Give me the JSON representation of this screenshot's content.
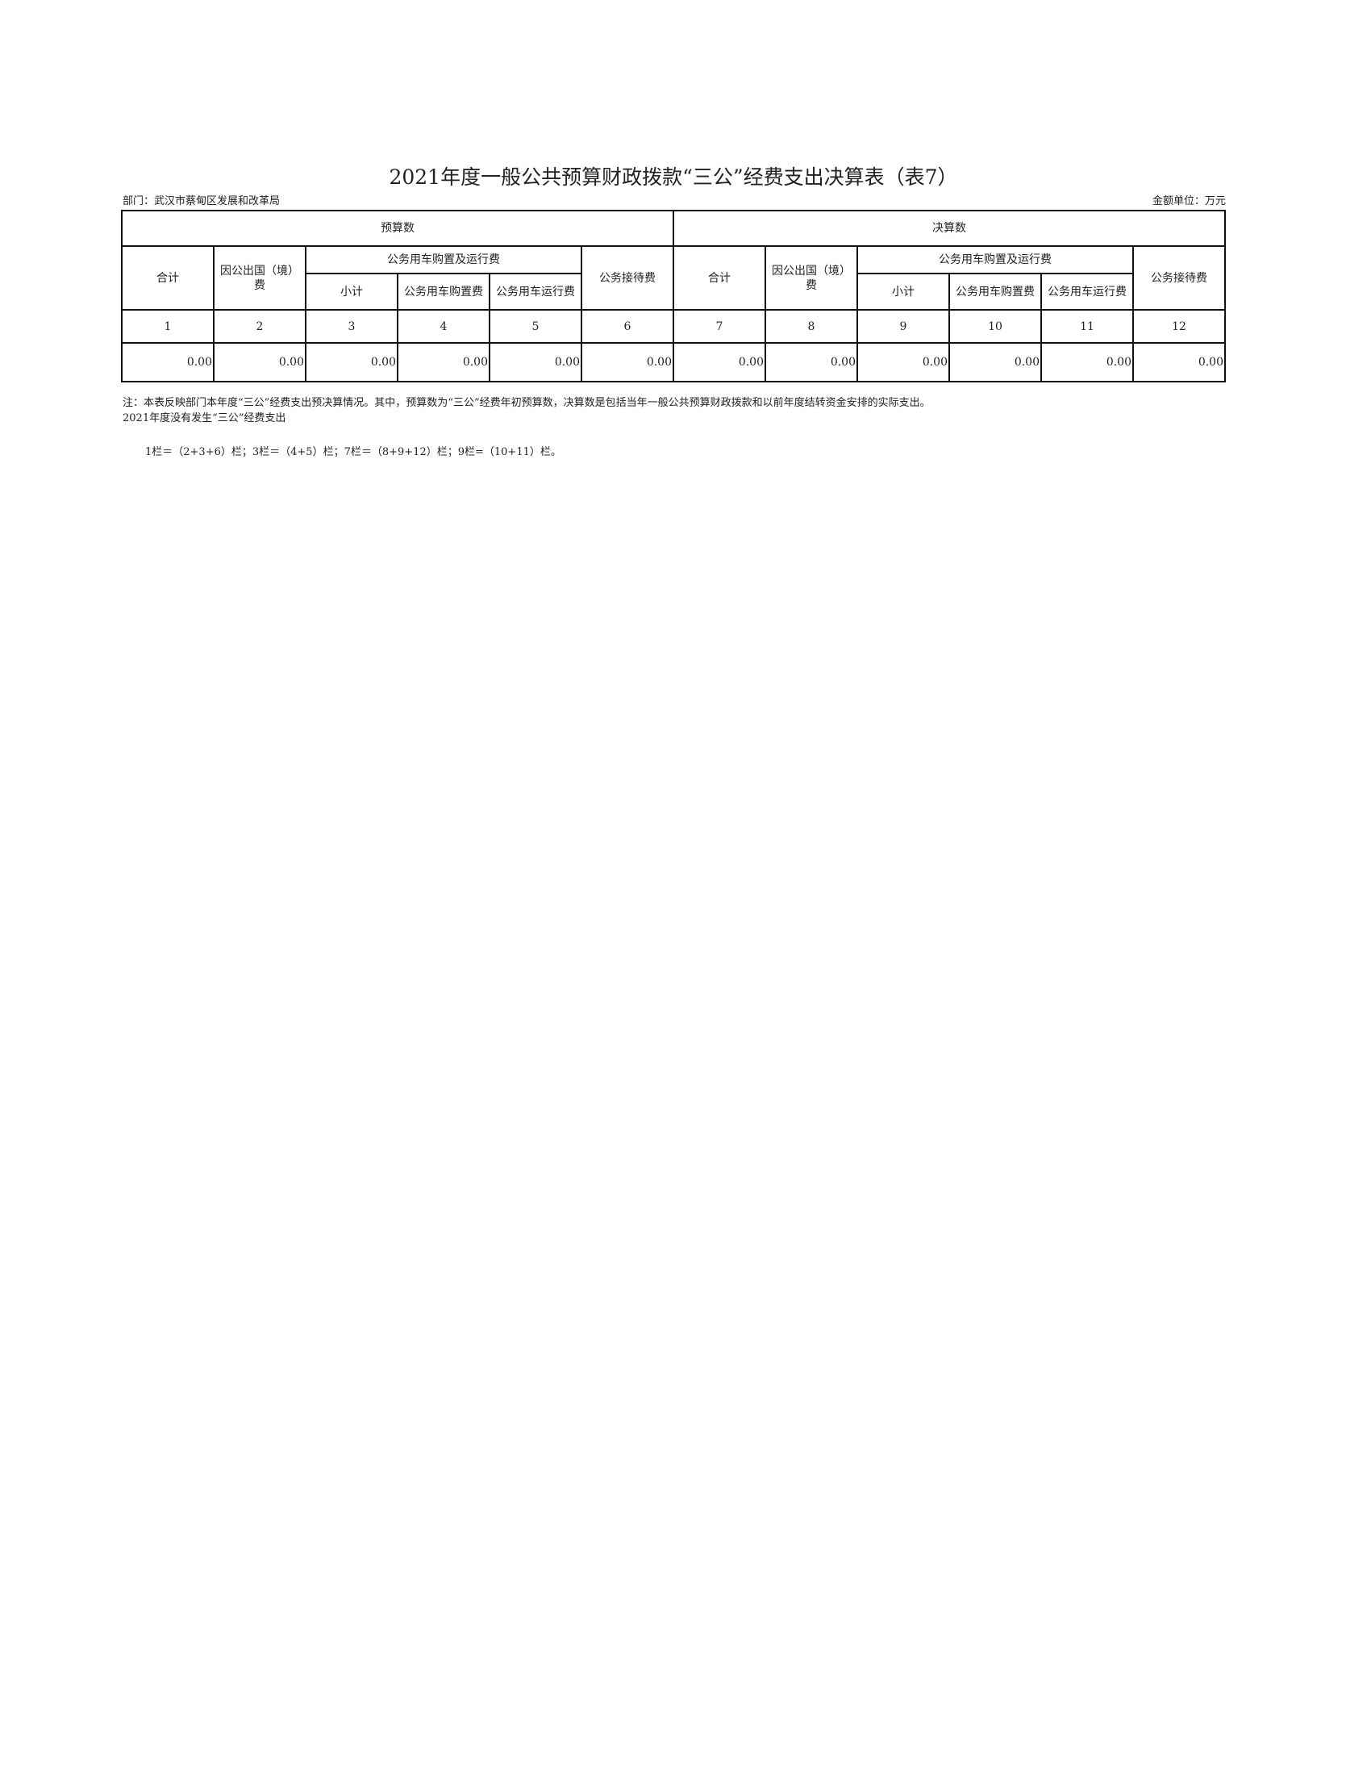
{
  "title": "2021年度一般公共预算财政拨款“三公”经费支出决算表（表7）",
  "department": "部门：武汉市蔡甸区发展和改革局",
  "unit": "金额单位：万元",
  "groups": {
    "budget": "预算数",
    "final": "决算数"
  },
  "headers": {
    "total": "合计",
    "abroad": "因公出国（境）费",
    "vehicle": "公务用车购置及运行费",
    "subtotal": "小计",
    "purchase": "公务用车购置费",
    "operation": "公务用车运行费",
    "reception": "公务接待费"
  },
  "col_numbers": [
    "1",
    "2",
    "3",
    "4",
    "5",
    "6",
    "7",
    "8",
    "9",
    "10",
    "11",
    "12"
  ],
  "values": [
    "0.00",
    "0.00",
    "0.00",
    "0.00",
    "0.00",
    "0.00",
    "0.00",
    "0.00",
    "0.00",
    "0.00",
    "0.00",
    "0.00"
  ],
  "notes": [
    "注：本表反映部门本年度“三公”经费支出预决算情况。其中，预算数为“三公”经费年初预算数，决算数是包括当年一般公共预算财政拨款和以前年度结转资金安排的实际支出。",
    "2021年度没有发生“三公”经费支出",
    "1栏＝（2+3+6）栏；3栏＝（4+5）栏；7栏＝（8+9+12）栏；9栏=（10+11）栏。"
  ]
}
